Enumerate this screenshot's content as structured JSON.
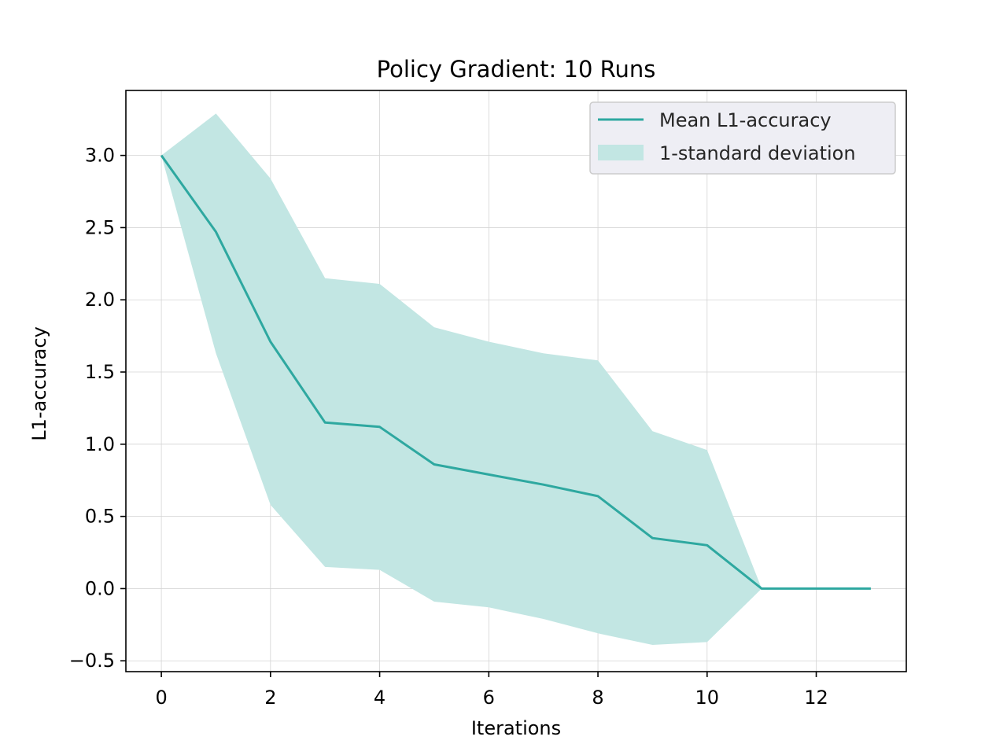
{
  "chart_data": {
    "type": "line",
    "title": "Policy Gradient: 10 Runs",
    "xlabel": "Iterations",
    "ylabel": "L1-accuracy",
    "xlim": [
      -0.65,
      13.65
    ],
    "ylim": [
      -0.575,
      3.45
    ],
    "xticks": [
      0,
      2,
      4,
      6,
      8,
      10,
      12
    ],
    "xtick_labels": [
      "0",
      "2",
      "4",
      "6",
      "8",
      "10",
      "12"
    ],
    "yticks": [
      -0.5,
      0.0,
      0.5,
      1.0,
      1.5,
      2.0,
      2.5,
      3.0
    ],
    "ytick_labels": [
      "−0.5",
      "0.0",
      "0.5",
      "1.0",
      "1.5",
      "2.0",
      "2.5",
      "3.0"
    ],
    "grid": true,
    "legend_position": "top-right",
    "x": [
      0,
      1,
      2,
      3,
      4,
      5,
      6,
      7,
      8,
      9,
      10,
      11,
      12,
      13
    ],
    "series": [
      {
        "name": "Mean L1-accuracy",
        "values": [
          3.0,
          2.47,
          1.71,
          1.15,
          1.12,
          0.86,
          0.79,
          0.72,
          0.64,
          0.35,
          0.3,
          0.0,
          0.0,
          0.0
        ]
      }
    ],
    "band": {
      "name": "1-standard deviation",
      "upper": [
        3.0,
        3.29,
        2.84,
        2.15,
        2.11,
        1.81,
        1.71,
        1.63,
        1.58,
        1.09,
        0.96,
        0.0,
        0.0,
        0.0
      ],
      "lower": [
        3.0,
        1.63,
        0.58,
        0.15,
        0.13,
        -0.09,
        -0.13,
        -0.21,
        -0.31,
        -0.39,
        -0.37,
        0.0,
        0.0,
        0.0
      ]
    },
    "colors": {
      "line": "#2ea8a0",
      "band": "#c2e6e3",
      "grid": "#d4d4d4",
      "legend_bg": "#eeeef4"
    }
  }
}
